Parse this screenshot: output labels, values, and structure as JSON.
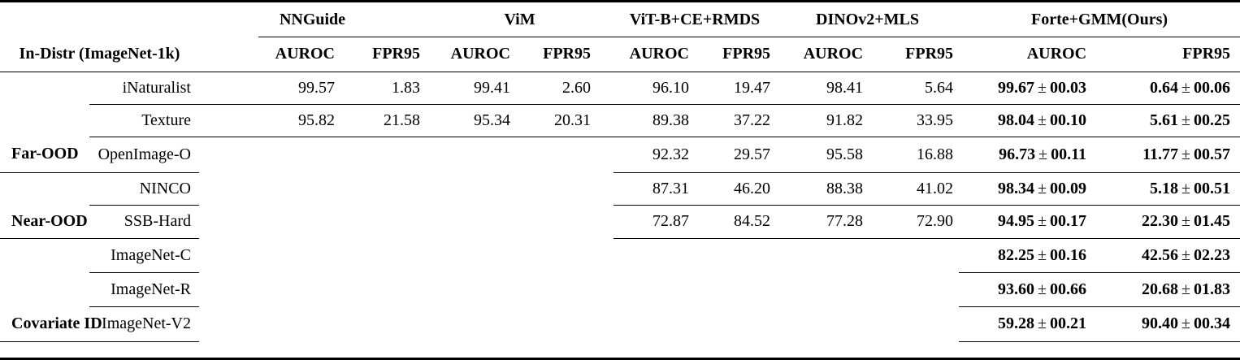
{
  "table": {
    "row_header_title": "In-Distr (ImageNet-1k)",
    "metric_labels": [
      "AUROC",
      "FPR95"
    ],
    "method_groups": [
      {
        "label": "NNGuide"
      },
      {
        "label": "ViM"
      },
      {
        "label": "ViT-B+CE+RMDS"
      },
      {
        "label": "DINOv2+MLS"
      },
      {
        "label": "Forte+GMM(Ours)",
        "ours": true
      }
    ],
    "row_groups": [
      {
        "label": "Far-OOD",
        "rows": [
          {
            "dataset": "iNaturalist",
            "values": [
              "99.57",
              "1.83",
              "99.41",
              "2.60",
              "96.10",
              "19.47",
              "98.41",
              "5.64",
              "99.67 ± 00.03",
              "0.64 ± 00.06"
            ]
          },
          {
            "dataset": "Texture",
            "values": [
              "95.82",
              "21.58",
              "95.34",
              "20.31",
              "89.38",
              "37.22",
              "91.82",
              "33.95",
              "98.04 ± 00.10",
              "5.61 ± 00.25"
            ]
          },
          {
            "dataset": "OpenImage-O",
            "values": [
              "",
              "",
              "",
              "",
              "92.32",
              "29.57",
              "95.58",
              "16.88",
              "96.73 ± 00.11",
              "11.77 ± 00.57"
            ]
          }
        ]
      },
      {
        "label": "Near-OOD",
        "rows": [
          {
            "dataset": "NINCO",
            "values": [
              "",
              "",
              "",
              "",
              "87.31",
              "46.20",
              "88.38",
              "41.02",
              "98.34 ± 00.09",
              "5.18 ± 00.51"
            ]
          },
          {
            "dataset": "SSB-Hard",
            "values": [
              "",
              "",
              "",
              "",
              "72.87",
              "84.52",
              "77.28",
              "72.90",
              "94.95 ± 00.17",
              "22.30 ± 01.45"
            ]
          }
        ]
      },
      {
        "label": "Covariate ID",
        "rows": [
          {
            "dataset": "ImageNet-C",
            "values": [
              "",
              "",
              "",
              "",
              "",
              "",
              "",
              "",
              "82.25 ± 00.16",
              "42.56 ± 02.23"
            ]
          },
          {
            "dataset": "ImageNet-R",
            "values": [
              "",
              "",
              "",
              "",
              "",
              "",
              "",
              "",
              "93.60 ± 00.66",
              "20.68 ± 01.83"
            ]
          },
          {
            "dataset": "ImageNet-V2",
            "values": [
              "",
              "",
              "",
              "",
              "",
              "",
              "",
              "",
              "59.28 ± 00.21",
              "90.40 ± 00.34"
            ]
          }
        ]
      }
    ]
  }
}
